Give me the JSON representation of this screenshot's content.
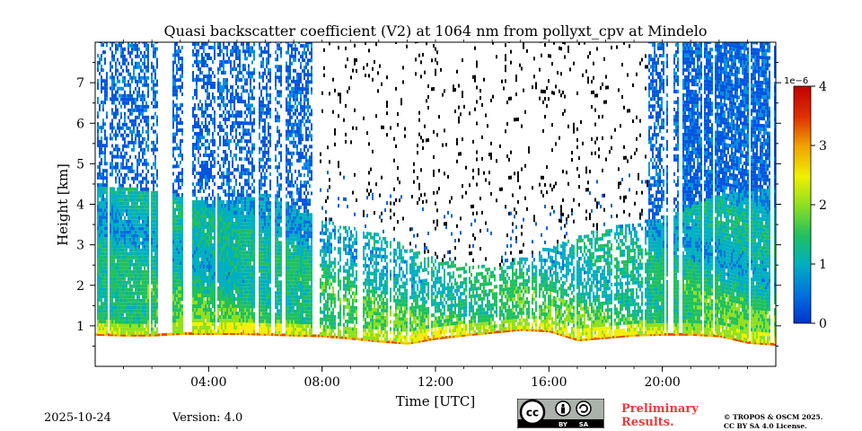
{
  "chart_data": {
    "type": "heatmap",
    "title": "Quasi backscatter coefficient (V2) at 1064 nm from pollyxt_cpv at Mindelo",
    "xlabel": "Time [UTC]",
    "ylabel": "Height [km]",
    "x_unit": "hours UTC",
    "xlim": [
      0,
      24
    ],
    "ylim": [
      0,
      8
    ],
    "x_ticks": [
      {
        "value": 4,
        "label": "04:00"
      },
      {
        "value": 8,
        "label": "08:00"
      },
      {
        "value": 12,
        "label": "12:00"
      },
      {
        "value": 16,
        "label": "16:00"
      },
      {
        "value": 20,
        "label": "20:00"
      }
    ],
    "y_ticks": [
      {
        "value": 1,
        "label": "1"
      },
      {
        "value": 2,
        "label": "2"
      },
      {
        "value": 3,
        "label": "3"
      },
      {
        "value": 4,
        "label": "4"
      },
      {
        "value": 5,
        "label": "5"
      },
      {
        "value": 6,
        "label": "6"
      },
      {
        "value": 7,
        "label": "7"
      }
    ],
    "colorbar": {
      "range": [
        0,
        4
      ],
      "multiplier": "1e−6",
      "ticks": [
        {
          "value": 0,
          "label": "0"
        },
        {
          "value": 1,
          "label": "1"
        },
        {
          "value": 2,
          "label": "2"
        },
        {
          "value": 3,
          "label": "3"
        },
        {
          "value": 4,
          "label": "4"
        }
      ],
      "colors": [
        "#0033cc",
        "#0070e0",
        "#00b0c0",
        "#20c060",
        "#90e020",
        "#f0f000",
        "#f0a000",
        "#e03000",
        "#c00000"
      ]
    },
    "surface_layer_top_km": [
      [
        0,
        0.8
      ],
      [
        1,
        0.78
      ],
      [
        2,
        0.78
      ],
      [
        3,
        0.82
      ],
      [
        4,
        0.82
      ],
      [
        5,
        0.82
      ],
      [
        6,
        0.8
      ],
      [
        7,
        0.78
      ],
      [
        8,
        0.76
      ],
      [
        9,
        0.7
      ],
      [
        10,
        0.63
      ],
      [
        11,
        0.58
      ],
      [
        12,
        0.7
      ],
      [
        13,
        0.78
      ],
      [
        14,
        0.85
      ],
      [
        15,
        0.92
      ],
      [
        16,
        0.88
      ],
      [
        17,
        0.66
      ],
      [
        18,
        0.72
      ],
      [
        19,
        0.78
      ],
      [
        20,
        0.8
      ],
      [
        21,
        0.8
      ],
      [
        22,
        0.76
      ],
      [
        23,
        0.6
      ],
      [
        24,
        0.55
      ]
    ],
    "aerosol_layer_top_km": [
      [
        0,
        4.4
      ],
      [
        2,
        4.3
      ],
      [
        4,
        4.0
      ],
      [
        6,
        4.2
      ],
      [
        8,
        3.6
      ],
      [
        10,
        3.2
      ],
      [
        12,
        2.6
      ],
      [
        14,
        2.4
      ],
      [
        16,
        2.9
      ],
      [
        18,
        3.4
      ],
      [
        20,
        3.6
      ],
      [
        22,
        4.2
      ],
      [
        24,
        4.4
      ]
    ],
    "clear_gaps_hours": [
      [
        2.2,
        2.7
      ],
      [
        3.1,
        3.3
      ],
      [
        5.6,
        5.75
      ],
      [
        6.15,
        6.3
      ],
      [
        6.55,
        6.7
      ],
      [
        7.6,
        7.9
      ],
      [
        20.2,
        20.35
      ]
    ],
    "noise_region_hours": [
      7.8,
      19.5
    ],
    "sparse_noise_hours": [
      9.0,
      15.5
    ]
  },
  "footer": {
    "date": "2025-10-24",
    "version": "Version: 4.0",
    "preliminary_line1": "Preliminary",
    "preliminary_line2": "Results.",
    "copyright_line1": "© TROPOS & OSCM 2025.",
    "copyright_line2": "CC BY SA 4.0 License.",
    "cc_badge": [
      "BY",
      "SA"
    ]
  }
}
